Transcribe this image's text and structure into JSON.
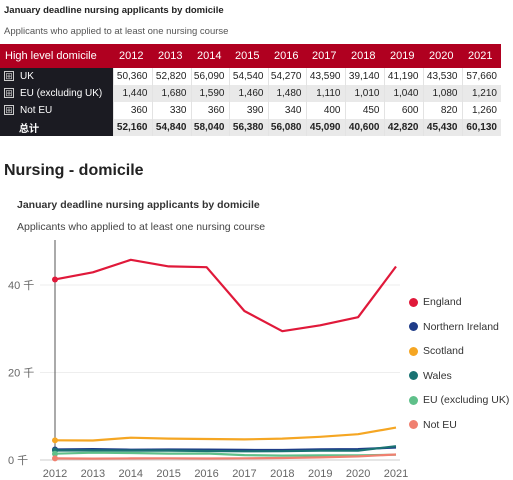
{
  "table": {
    "title": "January deadline nursing applicants by domicile",
    "subtitle": "Applicants who applied to at least one nursing course",
    "header": [
      "High level domicile",
      "2012",
      "2013",
      "2014",
      "2015",
      "2016",
      "2017",
      "2018",
      "2019",
      "2020",
      "2021"
    ],
    "rows": [
      {
        "label": "UK",
        "values": [
          "50,360",
          "52,820",
          "56,090",
          "54,540",
          "54,270",
          "43,590",
          "39,140",
          "41,190",
          "43,530",
          "57,660"
        ]
      },
      {
        "label": "EU (excluding UK)",
        "values": [
          "1,440",
          "1,680",
          "1,590",
          "1,460",
          "1,480",
          "1,110",
          "1,010",
          "1,040",
          "1,080",
          "1,210"
        ]
      },
      {
        "label": "Not EU",
        "values": [
          "360",
          "330",
          "360",
          "390",
          "340",
          "400",
          "450",
          "600",
          "820",
          "1,260"
        ]
      }
    ],
    "total": {
      "label": "总计",
      "values": [
        "52,160",
        "54,840",
        "58,040",
        "56,380",
        "56,080",
        "45,090",
        "40,600",
        "42,820",
        "45,430",
        "60,130"
      ]
    },
    "expander_symbol": "⊞"
  },
  "section_title": "Nursing - domicile",
  "chart_data": {
    "type": "line",
    "title": "January deadline nursing applicants by domicile",
    "subtitle": "Applicants who applied to at least one nursing course",
    "x": [
      2012,
      2013,
      2014,
      2015,
      2016,
      2017,
      2018,
      2019,
      2020,
      2021
    ],
    "ylim": [
      0,
      48000
    ],
    "yticks": [
      0,
      20000,
      40000
    ],
    "ytick_labels": [
      "0 千",
      "20 千",
      "40 千"
    ],
    "legend_position": "right",
    "series": [
      {
        "name": "England",
        "color": "#e0193a",
        "values": [
          41270,
          42900,
          45750,
          44260,
          44060,
          34050,
          29440,
          30800,
          32650,
          44230
        ]
      },
      {
        "name": "Northern Ireland",
        "color": "#1f3c88",
        "values": [
          2400,
          2500,
          2350,
          2400,
          2380,
          2300,
          2280,
          2420,
          2500,
          2860
        ]
      },
      {
        "name": "Scotland",
        "color": "#f5a623",
        "values": [
          4500,
          4460,
          5100,
          4900,
          4800,
          4700,
          4900,
          5300,
          5900,
          7400
        ]
      },
      {
        "name": "Wales",
        "color": "#1a7373",
        "values": [
          2180,
          2180,
          2160,
          2140,
          2050,
          2000,
          2020,
          2120,
          2150,
          3160
        ]
      },
      {
        "name": "EU (excluding UK)",
        "color": "#5fc08a",
        "values": [
          1440,
          1680,
          1590,
          1460,
          1480,
          1110,
          1010,
          1040,
          1080,
          1210
        ]
      },
      {
        "name": "Not EU",
        "color": "#f08070",
        "values": [
          360,
          330,
          360,
          390,
          340,
          400,
          450,
          600,
          820,
          1260
        ]
      }
    ]
  }
}
